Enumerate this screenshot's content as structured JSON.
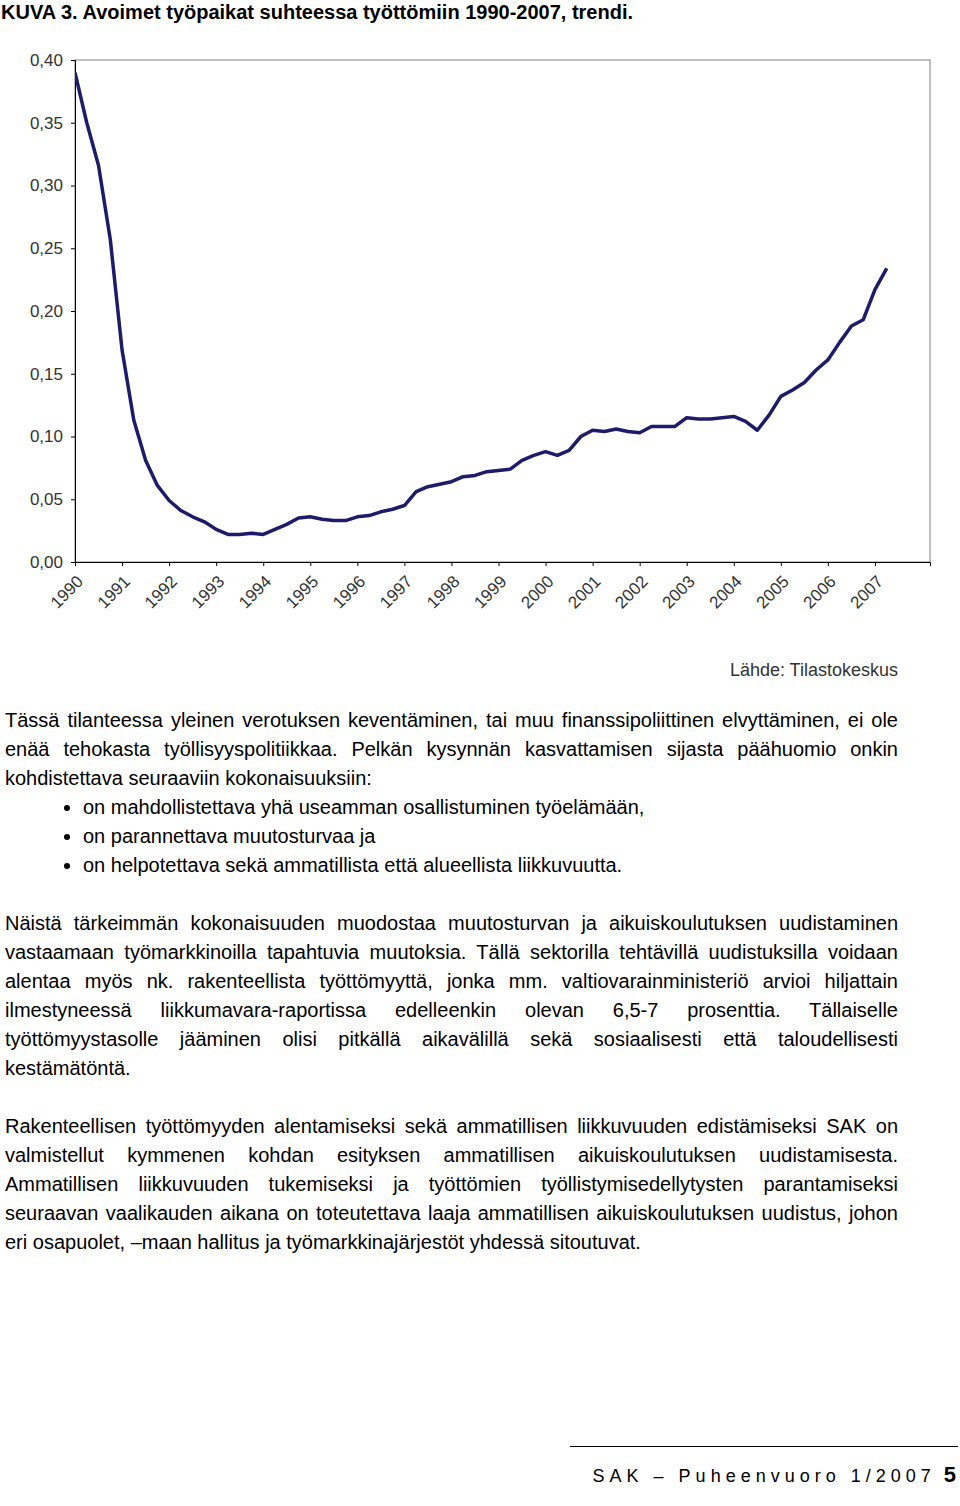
{
  "chart_data": {
    "type": "line",
    "title": "KUVA 3. Avoimet työpaikat suhteessa työttömiin 1990-2007, trendi.",
    "color": "#1c1c6b",
    "x": [
      1990.0,
      1990.25,
      1990.5,
      1990.75,
      1991.0,
      1991.25,
      1991.5,
      1991.75,
      1992.0,
      1992.25,
      1992.5,
      1992.75,
      1993.0,
      1993.25,
      1993.5,
      1993.75,
      1994.0,
      1994.25,
      1994.5,
      1994.75,
      1995.0,
      1995.25,
      1995.5,
      1995.75,
      1996.0,
      1996.25,
      1996.5,
      1996.75,
      1997.0,
      1997.25,
      1997.5,
      1997.75,
      1998.0,
      1998.25,
      1998.5,
      1998.75,
      1999.0,
      1999.25,
      1999.5,
      1999.75,
      2000.0,
      2000.25,
      2000.5,
      2000.75,
      2001.0,
      2001.25,
      2001.5,
      2001.75,
      2002.0,
      2002.25,
      2002.5,
      2002.75,
      2003.0,
      2003.25,
      2003.5,
      2003.75,
      2004.0,
      2004.25,
      2004.5,
      2004.75,
      2005.0,
      2005.25,
      2005.5,
      2005.75,
      2006.0,
      2006.25,
      2006.5,
      2006.75,
      2007.0,
      2007.25
    ],
    "values": [
      0.39,
      0.35,
      0.316,
      0.257,
      0.169,
      0.113,
      0.081,
      0.061,
      0.049,
      0.041,
      0.036,
      0.032,
      0.026,
      0.022,
      0.022,
      0.023,
      0.022,
      0.026,
      0.03,
      0.035,
      0.036,
      0.034,
      0.033,
      0.033,
      0.036,
      0.037,
      0.04,
      0.042,
      0.045,
      0.056,
      0.06,
      0.062,
      0.064,
      0.068,
      0.069,
      0.072,
      0.073,
      0.074,
      0.081,
      0.085,
      0.088,
      0.085,
      0.089,
      0.1,
      0.105,
      0.104,
      0.106,
      0.104,
      0.103,
      0.108,
      0.108,
      0.108,
      0.115,
      0.114,
      0.114,
      0.115,
      0.116,
      0.112,
      0.105,
      0.117,
      0.132,
      0.137,
      0.143,
      0.153,
      0.161,
      0.175,
      0.188,
      0.193,
      0.217,
      0.234
    ],
    "xlim": [
      1990,
      2008.17
    ],
    "xticks": [
      1990,
      1991,
      1992,
      1993,
      1994,
      1995,
      1996,
      1997,
      1998,
      1999,
      2000,
      2001,
      2002,
      2003,
      2004,
      2005,
      2006,
      2007
    ],
    "ylim": [
      0,
      0.4
    ],
    "yticks": [
      {
        "value": 0,
        "label": "0,00"
      },
      {
        "value": 0.05,
        "label": "0,05"
      },
      {
        "value": 0.1,
        "label": "0,10"
      },
      {
        "value": 0.15,
        "label": "0,15"
      },
      {
        "value": 0.2,
        "label": "0,20"
      },
      {
        "value": 0.25,
        "label": "0,25"
      },
      {
        "value": 0.3,
        "label": "0,30"
      },
      {
        "value": 0.35,
        "label": "0,35"
      },
      {
        "value": 0.4,
        "label": "0,40"
      }
    ],
    "grid": false
  },
  "document": {
    "chart_source": "Lähde: Tilastokeskus",
    "intro": "Tässä tilanteessa yleinen verotuksen keventäminen, tai muu finanssipoliittinen elvyttäminen, ei ole enää tehokasta työllisyyspolitiikkaa. Pelkän kysynnän kasvattamisen sijasta päähuomio onkin kohdistettava seuraaviin kokonaisuuksiin:",
    "bullets": [
      "on mahdollistettava yhä useamman osallistuminen työelämään,",
      "on parannettava muutosturvaa ja",
      "on helpotettava sekä ammatillista että alueellista liikkuvuutta."
    ],
    "paragraphs": [
      "Näistä tärkeimmän kokonaisuuden muodostaa muutosturvan ja aikuiskoulutuksen uudistaminen vastaamaan työmarkkinoilla tapahtuvia muutoksia. Tällä sektorilla tehtävillä uudistuksilla voidaan alentaa myös nk. rakenteellista työttömyyttä, jonka mm. valtiovarainministeriö arvioi hiljattain ilmestyneessä liikkumavara-raportissa edelleenkin olevan 6,5-7 prosenttia. Tällaiselle työttömyystasolle jääminen olisi pitkällä aikavälillä sekä sosiaalisesti että taloudellisesti kestämätöntä.",
      "Rakenteellisen työttömyyden alentamiseksi sekä ammatillisen liikkuvuuden edistämiseksi SAK on valmistellut kymmenen kohdan esityksen ammatillisen aikuiskoulutuksen uudistamisesta. Ammatillisen liikkuvuuden tukemiseksi ja työttömien työllistymisedellytysten parantamiseksi seuraavan vaalikauden aikana on toteutettava laaja ammatillisen aikuiskoulutuksen uudistus, johon eri osapuolet, –maan hallitus ja työmarkkinajärjestöt yhdessä sitoutuvat."
    ],
    "footer": {
      "publication": "SAK – Puheenvuoro 1/2007",
      "page": "5"
    }
  }
}
